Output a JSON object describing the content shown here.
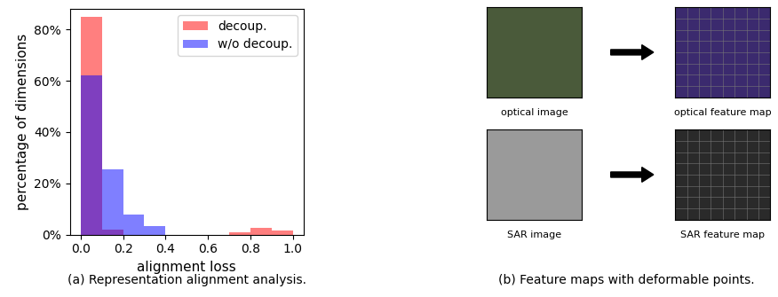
{
  "chart_data": {
    "type": "histogram",
    "xlabel": "alignment loss",
    "ylabel": "percentage of dimensions",
    "bins": [
      0.0,
      0.1,
      0.2,
      0.3,
      0.4,
      0.5,
      0.6,
      0.7,
      0.8,
      0.9,
      1.0
    ],
    "series": [
      {
        "name": "decoup.",
        "color": "#ff0000",
        "values": [
          85,
          2,
          0,
          0,
          0,
          0,
          0,
          1,
          2.5,
          1.5
        ]
      },
      {
        "name": "w/o decoup.",
        "color": "#0000ff",
        "values": [
          62,
          25.5,
          8,
          3.5,
          0,
          0,
          0,
          0,
          0,
          0
        ]
      }
    ],
    "xlim": [
      -0.05,
      1.05
    ],
    "xticks": [
      0.0,
      0.2,
      0.4,
      0.6,
      0.8,
      1.0
    ],
    "ylim": [
      0,
      88
    ],
    "yticks": [
      {
        "value": 0,
        "label": "0%"
      },
      {
        "value": 20,
        "label": "20%"
      },
      {
        "value": 40,
        "label": "40%"
      },
      {
        "value": 60,
        "label": "60%"
      },
      {
        "value": 80,
        "label": "80%"
      }
    ],
    "legend": "upper right"
  },
  "panel_b": {
    "images": [
      {
        "label": "optical image",
        "color": "#4a5a3a"
      },
      {
        "label": "optical feature map",
        "color": "#3b2a6e"
      },
      {
        "label": "SAR image",
        "color": "#9a9a9a"
      },
      {
        "label": "SAR feature map",
        "color": "#2a2a2a"
      }
    ]
  },
  "captions": [
    "(a) Representation alignment analysis.",
    "(b) Feature maps with deformable points."
  ]
}
